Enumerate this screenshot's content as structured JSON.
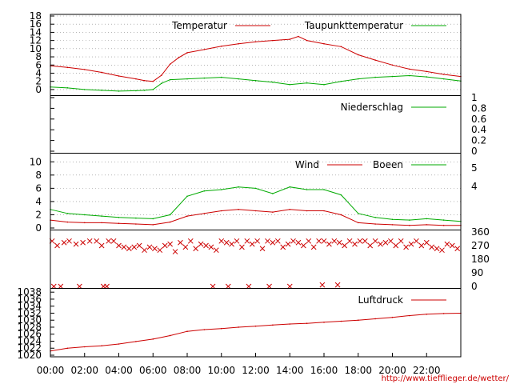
{
  "chart_data": [
    {
      "type": "line",
      "panel": "temperature",
      "yticks": [
        0,
        2,
        4,
        6,
        8,
        10,
        12,
        14,
        16,
        18
      ],
      "ylim": [
        -1,
        18
      ],
      "grid": true,
      "legend_position": "top-right",
      "series": [
        {
          "name": "Temperatur",
          "color": "#cc0000",
          "x": [
            0,
            1,
            2,
            3,
            4,
            5,
            5.5,
            6,
            6.5,
            7,
            7.5,
            8,
            9,
            10,
            11,
            12,
            13,
            14,
            14.5,
            15,
            16,
            17,
            18,
            19,
            20,
            21,
            22,
            23,
            24
          ],
          "values": [
            5.8,
            5.4,
            4.9,
            4.2,
            3.3,
            2.6,
            2.2,
            2.0,
            3.5,
            6.2,
            7.8,
            9.0,
            9.8,
            10.6,
            11.2,
            11.7,
            12.0,
            12.3,
            13.0,
            12.0,
            11.2,
            10.5,
            8.5,
            7.2,
            6.0,
            5.0,
            4.4,
            3.7,
            3.2
          ]
        },
        {
          "name": "Taupunkttemperatur",
          "color": "#00aa00",
          "x": [
            0,
            1,
            2,
            3,
            4,
            5,
            5.5,
            6,
            6.5,
            7,
            8,
            9,
            10,
            11,
            12,
            13,
            14,
            15,
            16,
            17,
            18,
            19,
            20,
            21,
            22,
            23,
            24
          ],
          "values": [
            0.6,
            0.4,
            0.0,
            -0.2,
            -0.4,
            -0.3,
            -0.2,
            0.0,
            1.5,
            2.4,
            2.6,
            2.8,
            3.0,
            2.6,
            2.2,
            1.8,
            1.2,
            1.6,
            1.2,
            2.0,
            2.6,
            3.0,
            3.2,
            3.4,
            3.1,
            2.6,
            2.1
          ]
        }
      ]
    },
    {
      "type": "line",
      "panel": "precipitation",
      "yticks": [
        0,
        0.2,
        0.4,
        0.6,
        0.8,
        1
      ],
      "ylim": [
        0,
        1
      ],
      "legend_position": "top-right",
      "series": [
        {
          "name": "Niederschlag",
          "color": "#00aa00",
          "x": [],
          "values": []
        }
      ]
    },
    {
      "type": "line",
      "panel": "wind",
      "yticks": [
        0,
        2,
        4,
        6,
        8,
        10
      ],
      "ylim": [
        0,
        11
      ],
      "right_ticks": [
        "5",
        "4"
      ],
      "grid": true,
      "legend_position": "top-right",
      "series": [
        {
          "name": "Wind",
          "color": "#cc0000",
          "x": [
            0,
            1,
            2,
            3,
            4,
            5,
            6,
            7,
            8,
            9,
            10,
            11,
            12,
            13,
            14,
            15,
            16,
            17,
            18,
            19,
            20,
            21,
            22,
            23,
            24
          ],
          "values": [
            1.2,
            0.9,
            0.8,
            0.8,
            0.7,
            0.6,
            0.5,
            0.9,
            1.8,
            2.2,
            2.6,
            2.8,
            2.6,
            2.4,
            2.8,
            2.6,
            2.6,
            2.0,
            0.8,
            0.6,
            0.5,
            0.4,
            0.5,
            0.4,
            0.4
          ]
        },
        {
          "name": "Boeen",
          "color": "#00aa00",
          "x": [
            0,
            1,
            2,
            3,
            4,
            5,
            6,
            7,
            8,
            9,
            10,
            11,
            12,
            13,
            14,
            15,
            16,
            17,
            18,
            19,
            20,
            21,
            22,
            23,
            24
          ],
          "values": [
            2.8,
            2.2,
            2.0,
            1.8,
            1.6,
            1.5,
            1.4,
            2.0,
            4.8,
            5.6,
            5.8,
            6.2,
            6.0,
            5.2,
            6.2,
            5.8,
            5.8,
            5.0,
            2.2,
            1.6,
            1.3,
            1.2,
            1.4,
            1.2,
            1.0
          ]
        }
      ]
    },
    {
      "type": "scatter",
      "panel": "wind-direction",
      "right_ticks": [
        "360",
        "270",
        "180",
        "90",
        "0"
      ],
      "ylim": [
        0,
        360
      ],
      "series": [
        {
          "name": "",
          "color": "#cc0000",
          "x": [
            0.1,
            0.4,
            0.8,
            1.1,
            1.5,
            1.9,
            2.3,
            2.7,
            3.0,
            3.4,
            3.7,
            4.0,
            4.3,
            4.6,
            4.9,
            5.2,
            5.5,
            5.8,
            6.1,
            6.4,
            6.7,
            7.0,
            7.3,
            7.6,
            7.9,
            8.2,
            8.5,
            8.8,
            9.1,
            9.4,
            9.7,
            10.0,
            10.3,
            10.6,
            10.9,
            11.2,
            11.5,
            11.8,
            12.1,
            12.4,
            12.7,
            13.0,
            13.3,
            13.6,
            13.9,
            14.2,
            14.5,
            14.8,
            15.1,
            15.4,
            15.7,
            16.0,
            16.3,
            16.6,
            16.9,
            17.2,
            17.5,
            17.8,
            18.1,
            18.4,
            18.7,
            19.0,
            19.3,
            19.6,
            19.9,
            20.2,
            20.5,
            20.8,
            21.1,
            21.4,
            21.7,
            22.0,
            22.3,
            22.6,
            22.9,
            23.2,
            23.5,
            23.8,
            0.2,
            0.6,
            1.7,
            3.1,
            3.3,
            9.5,
            10.4,
            11.6,
            12.8,
            14.0,
            15.9,
            16.8
          ],
          "values": [
            300,
            270,
            290,
            300,
            280,
            290,
            300,
            300,
            270,
            300,
            300,
            270,
            260,
            250,
            260,
            270,
            240,
            260,
            250,
            240,
            270,
            280,
            230,
            290,
            260,
            300,
            250,
            280,
            270,
            260,
            240,
            300,
            290,
            280,
            300,
            260,
            300,
            280,
            300,
            250,
            300,
            290,
            300,
            260,
            280,
            300,
            290,
            270,
            300,
            260,
            300,
            300,
            280,
            300,
            290,
            270,
            300,
            280,
            300,
            300,
            270,
            300,
            280,
            290,
            300,
            270,
            300,
            260,
            280,
            300,
            270,
            290,
            260,
            250,
            240,
            280,
            270,
            250,
            0,
            0,
            0,
            0,
            0,
            0,
            0,
            0,
            0,
            0,
            10,
            10
          ]
        }
      ]
    },
    {
      "type": "line",
      "panel": "pressure",
      "yticks": [
        1020,
        1022,
        1024,
        1026,
        1028,
        1030,
        1032,
        1034,
        1036,
        1038
      ],
      "ylim": [
        1020,
        1038.5
      ],
      "legend_position": "top-right",
      "xticks": [
        "00:00",
        "02:00",
        "04:00",
        "06:00",
        "08:00",
        "10:00",
        "12:00",
        "14:00",
        "16:00",
        "18:00",
        "20:00",
        "22:00"
      ],
      "series": [
        {
          "name": "Luftdruck",
          "color": "#cc0000",
          "x": [
            0,
            1,
            2,
            3,
            4,
            5,
            6,
            7,
            8,
            9,
            10,
            11,
            12,
            13,
            14,
            15,
            16,
            17,
            18,
            19,
            20,
            21,
            22,
            23,
            24
          ],
          "values": [
            1021.2,
            1022.0,
            1022.4,
            1022.7,
            1023.2,
            1023.9,
            1024.6,
            1025.6,
            1026.8,
            1027.3,
            1027.6,
            1028.0,
            1028.3,
            1028.6,
            1028.9,
            1029.1,
            1029.4,
            1029.7,
            1030.0,
            1030.4,
            1030.8,
            1031.3,
            1031.7,
            1031.9,
            1032.0
          ]
        }
      ]
    }
  ],
  "footer": {
    "url": "http://www.tiefflieger.de/wetter/"
  }
}
